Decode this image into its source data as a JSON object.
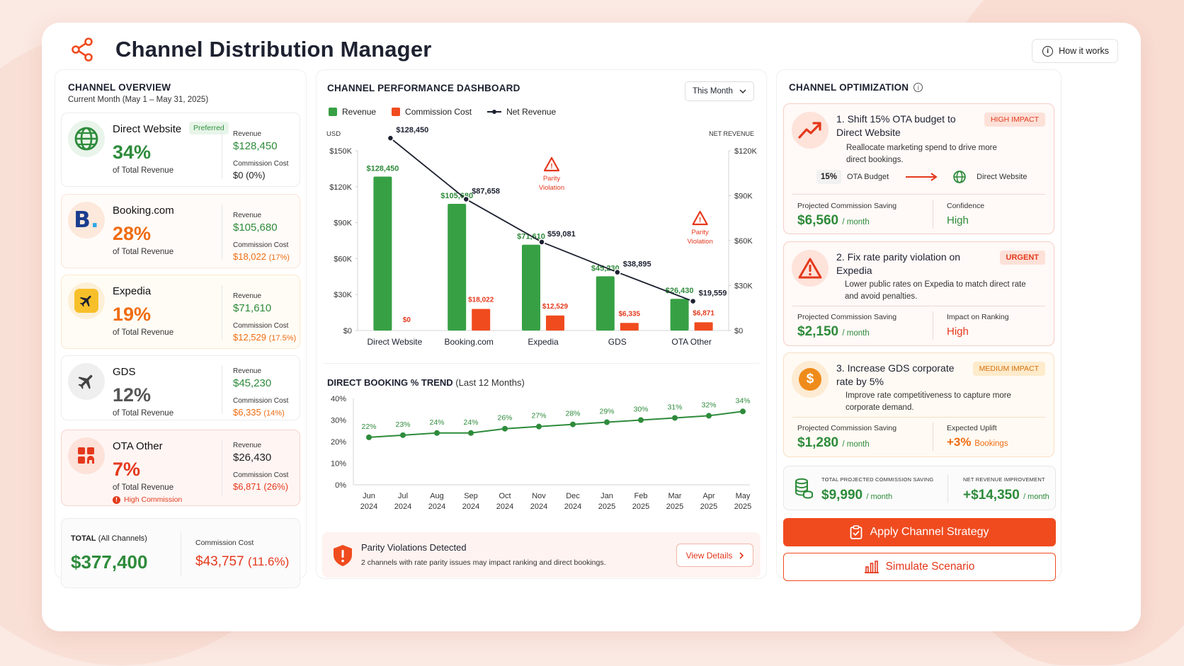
{
  "app": {
    "title": "Channel Distribution Manager",
    "how_label": "How it works"
  },
  "overview": {
    "title": "CHANNEL OVERVIEW",
    "subtitle": "Current Month (May 1 – May 31, 2025)",
    "of_label": "of Total Revenue",
    "revenue_label": "Revenue",
    "commission_label": "Commission Cost",
    "channels": [
      {
        "name": "Direct Website",
        "badge": "Preferred",
        "pct": "34%",
        "revenue": "$128,450",
        "commission": "$0",
        "commission_pct": "(0%)",
        "icon": "globe-icon"
      },
      {
        "name": "Booking.com",
        "pct": "28%",
        "revenue": "$105,680",
        "commission": "$18,022",
        "commission_pct": "(17%)",
        "icon": "booking-logo-icon"
      },
      {
        "name": "Expedia",
        "pct": "19%",
        "revenue": "$71,610",
        "commission": "$12,529",
        "commission_pct": "(17.5%)",
        "icon": "plane-icon"
      },
      {
        "name": "GDS",
        "pct": "12%",
        "revenue": "$45,230",
        "commission": "$6,335",
        "commission_pct": "(14%)",
        "icon": "plane-icon"
      },
      {
        "name": "OTA Other",
        "pct": "7%",
        "revenue": "$26,430",
        "commission": "$6,871",
        "commission_pct": "(26%)",
        "icon": "grid-icon",
        "warning": "High Commission"
      }
    ],
    "total": {
      "label": "TOTAL",
      "label_sub": "(All Channels)",
      "value": "$377,400",
      "commission_label": "Commission Cost",
      "commission": "$43,757",
      "commission_pct": "(11.6%)"
    }
  },
  "dashboard": {
    "title": "CHANNEL PERFORMANCE DASHBOARD",
    "period": "This Month",
    "legend": [
      "Revenue",
      "Commission Cost",
      "Net Revenue"
    ],
    "left_axis_label": "USD",
    "right_axis_label": "NET REVENUE",
    "parity_label": "Parity",
    "violation_label": "Violation"
  },
  "chart_data": [
    {
      "type": "bar",
      "categories": [
        "Direct Website",
        "Booking.com",
        "Expedia",
        "GDS",
        "OTA Other"
      ],
      "series": [
        {
          "name": "Revenue",
          "values": [
            128450,
            105680,
            71610,
            45230,
            26430
          ]
        },
        {
          "name": "Commission Cost",
          "values": [
            0,
            18022,
            12529,
            6335,
            6871
          ]
        },
        {
          "name": "Net Revenue",
          "values": [
            128450,
            87658,
            59081,
            38895,
            19559
          ]
        }
      ],
      "revenue_labels": [
        "$128,450",
        "$105,680",
        "$71,610",
        "$45,230",
        "$26,430"
      ],
      "commission_labels": [
        "$0",
        "$18,022",
        "$12,529",
        "$6,335",
        "$6,871"
      ],
      "net_labels": [
        "$128,450",
        "$87,658",
        "$59,081",
        "$38,895",
        "$19,559"
      ],
      "ylim": [
        0,
        150000
      ],
      "yticks": [
        "$0",
        "$30K",
        "$60K",
        "$90K",
        "$120K",
        "$150K"
      ],
      "y2lim": [
        0,
        120000
      ],
      "y2ticks": [
        "$0",
        "$30K",
        "$60K",
        "$90K",
        "$120K"
      ],
      "parity_violations": [
        "Expedia",
        "OTA Other"
      ]
    },
    {
      "type": "line",
      "title": "DIRECT BOOKING % TREND",
      "subtitle": "(Last 12 Months)",
      "x": [
        "Jun",
        "Jul",
        "Aug",
        "Sep",
        "Oct",
        "Nov",
        "Dec",
        "Jan",
        "Feb",
        "Mar",
        "Apr",
        "May"
      ],
      "x_years": [
        "2024",
        "2024",
        "2024",
        "2024",
        "2024",
        "2024",
        "2024",
        "2025",
        "2025",
        "2025",
        "2025",
        "2025"
      ],
      "values": [
        22,
        23,
        24,
        24,
        26,
        27,
        28,
        29,
        30,
        31,
        32,
        34
      ],
      "ylim": [
        0,
        40
      ],
      "yticks": [
        "0%",
        "10%",
        "20%",
        "30%",
        "40%"
      ]
    }
  ],
  "parity": {
    "title": "Parity Violations Detected",
    "desc": "2 channels with rate parity issues may impact ranking and direct bookings.",
    "button": "View Details"
  },
  "optimization": {
    "title": "CHANNEL OPTIMIZATION",
    "recs": [
      {
        "title": "1. Shift 15% OTA budget to Direct Website",
        "badge": "HIGH IMPACT",
        "desc": "Reallocate marketing spend to drive more direct bookings.",
        "flow_pct": "15%",
        "flow_from": "OTA Budget",
        "flow_to": "Direct Website",
        "m1_label": "Projected Commission Saving",
        "m1_value": "$6,560",
        "m1_unit": "/ month",
        "m2_label": "Confidence",
        "m2_value": "High"
      },
      {
        "title": "2. Fix rate parity violation on Expedia",
        "badge": "URGENT",
        "desc": "Lower public rates on Expedia to match direct rate and avoid penalties.",
        "m1_label": "Projected Commission Saving",
        "m1_value": "$2,150",
        "m1_unit": "/ month",
        "m2_label": "Impact on Ranking",
        "m2_value": "High"
      },
      {
        "title": "3. Increase GDS corporate rate by 5%",
        "badge": "MEDIUM IMPACT",
        "desc": "Improve rate competitiveness to capture more corporate demand.",
        "m1_label": "Projected Commission Saving",
        "m1_value": "$1,280",
        "m1_unit": "/ month",
        "m2_label": "Expected Uplift",
        "m2_value": "+3%",
        "m2_unit": "Bookings"
      }
    ],
    "summary": {
      "saving_label": "TOTAL PROJECTED COMMISSION SAVING",
      "saving_value": "$9,990",
      "saving_unit": "/ month",
      "net_label": "NET REVENUE IMPROVEMENT",
      "net_value": "+$14,350",
      "net_unit": "/ month"
    },
    "apply_label": "Apply Channel Strategy",
    "simulate_label": "Simulate Scenario"
  },
  "colors": {
    "green": "#2e8b3b",
    "orange": "#ef6c11",
    "red": "#e4381c",
    "accent": "#f04b1f"
  }
}
